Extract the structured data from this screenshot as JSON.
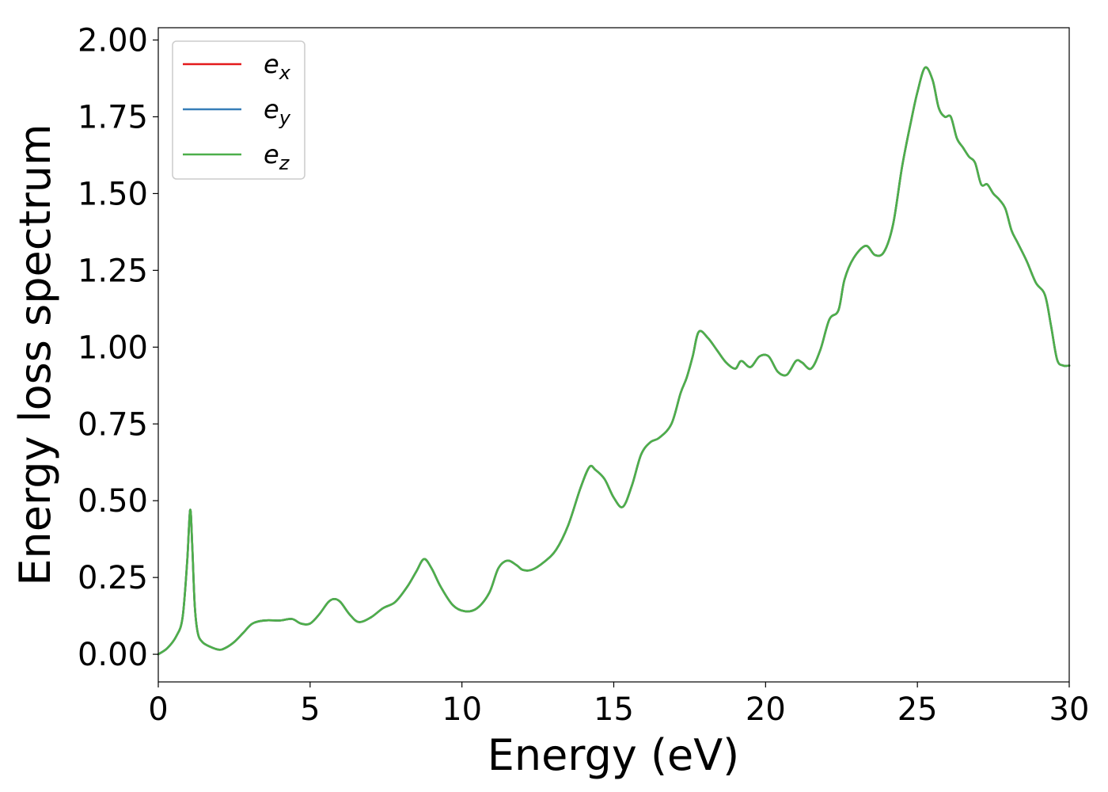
{
  "chart_data": {
    "type": "line",
    "xlabel": "Energy (eV)",
    "ylabel": "Energy loss spectrum",
    "xlim": [
      0,
      30
    ],
    "ylim": [
      -0.09,
      2.04
    ],
    "xticks": [
      0,
      5,
      10,
      15,
      20,
      25,
      30
    ],
    "xtick_labels": [
      "0",
      "5",
      "10",
      "15",
      "20",
      "25",
      "30"
    ],
    "yticks": [
      0,
      0.25,
      0.5,
      0.75,
      1.0,
      1.25,
      1.5,
      1.75,
      2.0
    ],
    "ytick_labels": [
      "0.00",
      "0.25",
      "0.50",
      "0.75",
      "1.00",
      "1.25",
      "1.50",
      "1.75",
      "2.00"
    ],
    "grid": false,
    "legend_position": "top-left",
    "x": [
      0,
      0.3,
      0.6,
      0.8,
      0.95,
      1.05,
      1.12,
      1.2,
      1.3,
      1.45,
      1.7,
      2.0,
      2.2,
      2.5,
      2.8,
      3.1,
      3.5,
      4.0,
      4.4,
      4.7,
      5.0,
      5.3,
      5.6,
      5.8,
      6.0,
      6.3,
      6.6,
      7.0,
      7.4,
      7.8,
      8.2,
      8.5,
      8.75,
      9.0,
      9.3,
      9.7,
      10.1,
      10.5,
      10.9,
      11.2,
      11.5,
      11.8,
      12.0,
      12.3,
      12.7,
      13.1,
      13.5,
      13.9,
      14.2,
      14.4,
      14.7,
      15.0,
      15.3,
      15.6,
      15.9,
      16.2,
      16.5,
      16.9,
      17.2,
      17.4,
      17.6,
      17.8,
      18.1,
      18.4,
      18.7,
      19.0,
      19.2,
      19.5,
      19.8,
      20.1,
      20.4,
      20.7,
      21.0,
      21.2,
      21.5,
      21.8,
      22.1,
      22.4,
      22.6,
      22.9,
      23.3,
      23.6,
      23.9,
      24.2,
      24.5,
      24.8,
      25.0,
      25.25,
      25.5,
      25.7,
      25.9,
      26.1,
      26.3,
      26.5,
      26.7,
      26.9,
      27.1,
      27.3,
      27.5,
      27.7,
      27.9,
      28.1,
      28.3,
      28.6,
      28.9,
      29.2,
      29.4,
      29.6,
      29.8,
      30.0
    ],
    "series": [
      {
        "name": "e_x",
        "label_base": "e",
        "label_sub": "x",
        "color": "#e41a1c",
        "values": [
          0.0,
          0.02,
          0.06,
          0.12,
          0.3,
          0.47,
          0.35,
          0.16,
          0.07,
          0.04,
          0.025,
          0.015,
          0.02,
          0.04,
          0.07,
          0.1,
          0.11,
          0.11,
          0.115,
          0.1,
          0.1,
          0.13,
          0.17,
          0.18,
          0.17,
          0.13,
          0.105,
          0.12,
          0.15,
          0.17,
          0.22,
          0.27,
          0.31,
          0.28,
          0.22,
          0.16,
          0.14,
          0.15,
          0.2,
          0.28,
          0.305,
          0.29,
          0.275,
          0.275,
          0.3,
          0.34,
          0.42,
          0.54,
          0.61,
          0.6,
          0.57,
          0.51,
          0.48,
          0.55,
          0.65,
          0.69,
          0.705,
          0.75,
          0.85,
          0.9,
          0.97,
          1.05,
          1.03,
          0.99,
          0.95,
          0.93,
          0.955,
          0.935,
          0.97,
          0.97,
          0.92,
          0.91,
          0.955,
          0.95,
          0.93,
          0.99,
          1.09,
          1.12,
          1.22,
          1.29,
          1.33,
          1.3,
          1.31,
          1.4,
          1.59,
          1.74,
          1.83,
          1.91,
          1.87,
          1.78,
          1.75,
          1.75,
          1.68,
          1.65,
          1.62,
          1.6,
          1.53,
          1.53,
          1.5,
          1.48,
          1.45,
          1.38,
          1.34,
          1.28,
          1.21,
          1.17,
          1.07,
          0.96,
          0.94,
          0.94
        ]
      },
      {
        "name": "e_y",
        "label_base": "e",
        "label_sub": "y",
        "color": "#377eb8",
        "values": [
          0.0,
          0.02,
          0.06,
          0.12,
          0.3,
          0.47,
          0.35,
          0.16,
          0.07,
          0.04,
          0.025,
          0.015,
          0.02,
          0.04,
          0.07,
          0.1,
          0.11,
          0.11,
          0.115,
          0.1,
          0.1,
          0.13,
          0.17,
          0.18,
          0.17,
          0.13,
          0.105,
          0.12,
          0.15,
          0.17,
          0.22,
          0.27,
          0.31,
          0.28,
          0.22,
          0.16,
          0.14,
          0.15,
          0.2,
          0.28,
          0.305,
          0.29,
          0.275,
          0.275,
          0.3,
          0.34,
          0.42,
          0.54,
          0.61,
          0.6,
          0.57,
          0.51,
          0.48,
          0.55,
          0.65,
          0.69,
          0.705,
          0.75,
          0.85,
          0.9,
          0.97,
          1.05,
          1.03,
          0.99,
          0.95,
          0.93,
          0.955,
          0.935,
          0.97,
          0.97,
          0.92,
          0.91,
          0.955,
          0.95,
          0.93,
          0.99,
          1.09,
          1.12,
          1.22,
          1.29,
          1.33,
          1.3,
          1.31,
          1.4,
          1.59,
          1.74,
          1.83,
          1.91,
          1.87,
          1.78,
          1.75,
          1.75,
          1.68,
          1.65,
          1.62,
          1.6,
          1.53,
          1.53,
          1.5,
          1.48,
          1.45,
          1.38,
          1.34,
          1.28,
          1.21,
          1.17,
          1.07,
          0.96,
          0.94,
          0.94
        ]
      },
      {
        "name": "e_z",
        "label_base": "e",
        "label_sub": "z",
        "color": "#4daf4a",
        "values": [
          0.0,
          0.02,
          0.06,
          0.12,
          0.3,
          0.47,
          0.35,
          0.16,
          0.07,
          0.04,
          0.025,
          0.015,
          0.02,
          0.04,
          0.07,
          0.1,
          0.11,
          0.11,
          0.115,
          0.1,
          0.1,
          0.13,
          0.17,
          0.18,
          0.17,
          0.13,
          0.105,
          0.12,
          0.15,
          0.17,
          0.22,
          0.27,
          0.31,
          0.28,
          0.22,
          0.16,
          0.14,
          0.15,
          0.2,
          0.28,
          0.305,
          0.29,
          0.275,
          0.275,
          0.3,
          0.34,
          0.42,
          0.54,
          0.61,
          0.6,
          0.57,
          0.51,
          0.48,
          0.55,
          0.65,
          0.69,
          0.705,
          0.75,
          0.85,
          0.9,
          0.97,
          1.05,
          1.03,
          0.99,
          0.95,
          0.93,
          0.955,
          0.935,
          0.97,
          0.97,
          0.92,
          0.91,
          0.955,
          0.95,
          0.93,
          0.99,
          1.09,
          1.12,
          1.22,
          1.29,
          1.33,
          1.3,
          1.31,
          1.4,
          1.59,
          1.74,
          1.83,
          1.91,
          1.87,
          1.78,
          1.75,
          1.75,
          1.68,
          1.65,
          1.62,
          1.6,
          1.53,
          1.53,
          1.5,
          1.48,
          1.45,
          1.38,
          1.34,
          1.28,
          1.21,
          1.17,
          1.07,
          0.96,
          0.94,
          0.94
        ]
      }
    ]
  }
}
